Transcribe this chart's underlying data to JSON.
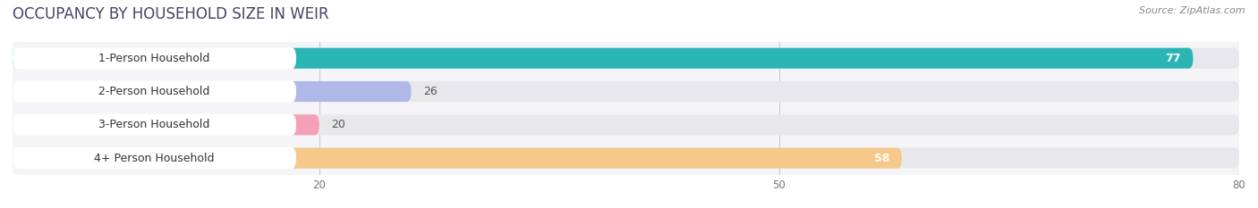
{
  "title": "OCCUPANCY BY HOUSEHOLD SIZE IN WEIR",
  "source": "Source: ZipAtlas.com",
  "categories": [
    "1-Person Household",
    "2-Person Household",
    "3-Person Household",
    "4+ Person Household"
  ],
  "values": [
    77,
    26,
    20,
    58
  ],
  "bar_colors": [
    "#2ab5b5",
    "#b0b8e8",
    "#f4a0b8",
    "#f5c98a"
  ],
  "track_color": "#e8e8ec",
  "label_bg_color": "#ffffff",
  "xlim_max": 80,
  "xticks": [
    20,
    50,
    80
  ],
  "background_color": "#ffffff",
  "bar_area_bg": "#f5f5f8",
  "title_fontsize": 12,
  "source_fontsize": 8,
  "bar_height": 0.62,
  "label_fontsize": 9,
  "value_fontsize": 9
}
